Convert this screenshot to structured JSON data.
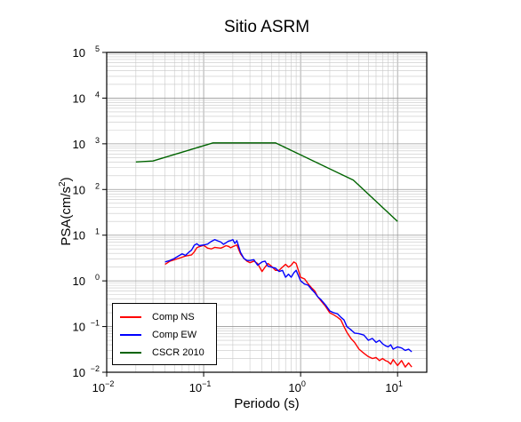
{
  "chart_data": {
    "type": "line",
    "title": "Sitio ASRM",
    "xlabel": "Periodo (s)",
    "ylabel_main": "PSA(cm/s",
    "ylabel_sup": "2",
    "ylabel_close": ")",
    "xscale": "log",
    "yscale": "log",
    "xlim": [
      0.01,
      20
    ],
    "ylim": [
      0.01,
      100000
    ],
    "grid": true,
    "legend_position": "bottom-left",
    "x_ticks": [
      {
        "value": 0.01,
        "base": "10",
        "exp": "−2"
      },
      {
        "value": 0.1,
        "base": "10",
        "exp": "−1"
      },
      {
        "value": 1,
        "base": "10",
        "exp": "0"
      },
      {
        "value": 10,
        "base": "10",
        "exp": "1"
      }
    ],
    "y_ticks": [
      {
        "value": 0.01,
        "base": "10",
        "exp": "−2"
      },
      {
        "value": 0.1,
        "base": "10",
        "exp": "−1"
      },
      {
        "value": 1,
        "base": "10",
        "exp": "0"
      },
      {
        "value": 10,
        "base": "10",
        "exp": "1"
      },
      {
        "value": 100,
        "base": "10",
        "exp": "2"
      },
      {
        "value": 1000,
        "base": "10",
        "exp": "3"
      },
      {
        "value": 10000,
        "base": "10",
        "exp": "4"
      },
      {
        "value": 100000,
        "base": "10",
        "exp": "5"
      }
    ],
    "series": [
      {
        "name": "Comp NS",
        "color": "#ff0000",
        "points": [
          [
            0.04,
            2.3
          ],
          [
            0.045,
            2.7
          ],
          [
            0.05,
            2.9
          ],
          [
            0.055,
            3.1
          ],
          [
            0.06,
            3.3
          ],
          [
            0.065,
            3.5
          ],
          [
            0.07,
            3.6
          ],
          [
            0.075,
            3.7
          ],
          [
            0.08,
            4.3
          ],
          [
            0.085,
            5.3
          ],
          [
            0.09,
            5.6
          ],
          [
            0.1,
            6.0
          ],
          [
            0.11,
            5.2
          ],
          [
            0.12,
            5.0
          ],
          [
            0.13,
            5.4
          ],
          [
            0.14,
            5.3
          ],
          [
            0.15,
            5.2
          ],
          [
            0.16,
            5.5
          ],
          [
            0.17,
            5.9
          ],
          [
            0.18,
            5.7
          ],
          [
            0.19,
            5.3
          ],
          [
            0.2,
            5.6
          ],
          [
            0.22,
            6.1
          ],
          [
            0.24,
            3.9
          ],
          [
            0.26,
            3.1
          ],
          [
            0.28,
            2.7
          ],
          [
            0.3,
            2.5
          ],
          [
            0.33,
            2.7
          ],
          [
            0.36,
            2.4
          ],
          [
            0.4,
            1.6
          ],
          [
            0.43,
            2.0
          ],
          [
            0.46,
            2.4
          ],
          [
            0.5,
            2.1
          ],
          [
            0.55,
            1.7
          ],
          [
            0.6,
            1.7
          ],
          [
            0.65,
            2.0
          ],
          [
            0.7,
            2.3
          ],
          [
            0.75,
            2.0
          ],
          [
            0.8,
            2.2
          ],
          [
            0.85,
            2.6
          ],
          [
            0.9,
            2.4
          ],
          [
            1.0,
            1.2
          ],
          [
            1.1,
            1.1
          ],
          [
            1.2,
            0.85
          ],
          [
            1.3,
            0.7
          ],
          [
            1.4,
            0.6
          ],
          [
            1.5,
            0.45
          ],
          [
            1.6,
            0.38
          ],
          [
            1.8,
            0.28
          ],
          [
            2.0,
            0.2
          ],
          [
            2.2,
            0.18
          ],
          [
            2.4,
            0.16
          ],
          [
            2.6,
            0.14
          ],
          [
            2.8,
            0.1
          ],
          [
            3.0,
            0.075
          ],
          [
            3.3,
            0.055
          ],
          [
            3.6,
            0.045
          ],
          [
            4.0,
            0.032
          ],
          [
            4.5,
            0.026
          ],
          [
            5.0,
            0.022
          ],
          [
            5.5,
            0.02
          ],
          [
            6.0,
            0.021
          ],
          [
            6.5,
            0.018
          ],
          [
            7.0,
            0.02
          ],
          [
            7.5,
            0.018
          ],
          [
            8.0,
            0.017
          ],
          [
            8.5,
            0.015
          ],
          [
            9.0,
            0.019
          ],
          [
            10.0,
            0.014
          ],
          [
            11.0,
            0.018
          ],
          [
            12.0,
            0.013
          ],
          [
            13.0,
            0.016
          ],
          [
            14.0,
            0.013
          ]
        ]
      },
      {
        "name": "Comp EW",
        "color": "#0000ff",
        "points": [
          [
            0.04,
            2.6
          ],
          [
            0.045,
            2.8
          ],
          [
            0.05,
            3.1
          ],
          [
            0.055,
            3.5
          ],
          [
            0.06,
            3.9
          ],
          [
            0.065,
            3.6
          ],
          [
            0.07,
            4.2
          ],
          [
            0.075,
            4.7
          ],
          [
            0.08,
            6.0
          ],
          [
            0.085,
            6.5
          ],
          [
            0.09,
            5.9
          ],
          [
            0.1,
            6.1
          ],
          [
            0.11,
            6.4
          ],
          [
            0.12,
            7.3
          ],
          [
            0.13,
            8.0
          ],
          [
            0.14,
            7.5
          ],
          [
            0.15,
            7.1
          ],
          [
            0.16,
            6.3
          ],
          [
            0.17,
            6.8
          ],
          [
            0.18,
            7.4
          ],
          [
            0.19,
            7.6
          ],
          [
            0.2,
            8.0
          ],
          [
            0.21,
            6.6
          ],
          [
            0.22,
            7.6
          ],
          [
            0.24,
            4.2
          ],
          [
            0.26,
            3.1
          ],
          [
            0.28,
            2.8
          ],
          [
            0.3,
            2.8
          ],
          [
            0.33,
            2.9
          ],
          [
            0.36,
            2.2
          ],
          [
            0.4,
            2.6
          ],
          [
            0.43,
            2.7
          ],
          [
            0.46,
            2.1
          ],
          [
            0.5,
            2.0
          ],
          [
            0.55,
            1.9
          ],
          [
            0.6,
            1.6
          ],
          [
            0.65,
            1.7
          ],
          [
            0.7,
            1.2
          ],
          [
            0.75,
            1.4
          ],
          [
            0.8,
            1.2
          ],
          [
            0.85,
            1.5
          ],
          [
            0.9,
            1.7
          ],
          [
            1.0,
            1.0
          ],
          [
            1.1,
            0.85
          ],
          [
            1.2,
            0.8
          ],
          [
            1.3,
            0.65
          ],
          [
            1.4,
            0.55
          ],
          [
            1.5,
            0.45
          ],
          [
            1.6,
            0.4
          ],
          [
            1.8,
            0.3
          ],
          [
            2.0,
            0.22
          ],
          [
            2.2,
            0.2
          ],
          [
            2.4,
            0.19
          ],
          [
            2.6,
            0.16
          ],
          [
            2.8,
            0.14
          ],
          [
            3.0,
            0.1
          ],
          [
            3.3,
            0.085
          ],
          [
            3.6,
            0.072
          ],
          [
            4.0,
            0.07
          ],
          [
            4.5,
            0.065
          ],
          [
            5.0,
            0.05
          ],
          [
            5.5,
            0.055
          ],
          [
            6.0,
            0.045
          ],
          [
            6.5,
            0.05
          ],
          [
            7.0,
            0.042
          ],
          [
            7.5,
            0.038
          ],
          [
            8.0,
            0.036
          ],
          [
            8.5,
            0.04
          ],
          [
            9.0,
            0.032
          ],
          [
            10.0,
            0.036
          ],
          [
            11.0,
            0.034
          ],
          [
            12.0,
            0.03
          ],
          [
            13.0,
            0.032
          ],
          [
            14.0,
            0.028
          ]
        ]
      },
      {
        "name": "CSCR 2010",
        "color": "#006400",
        "points": [
          [
            0.02,
            400
          ],
          [
            0.03,
            420
          ],
          [
            0.125,
            1050
          ],
          [
            0.55,
            1050
          ],
          [
            3.5,
            160
          ],
          [
            10.0,
            20
          ]
        ]
      }
    ]
  }
}
